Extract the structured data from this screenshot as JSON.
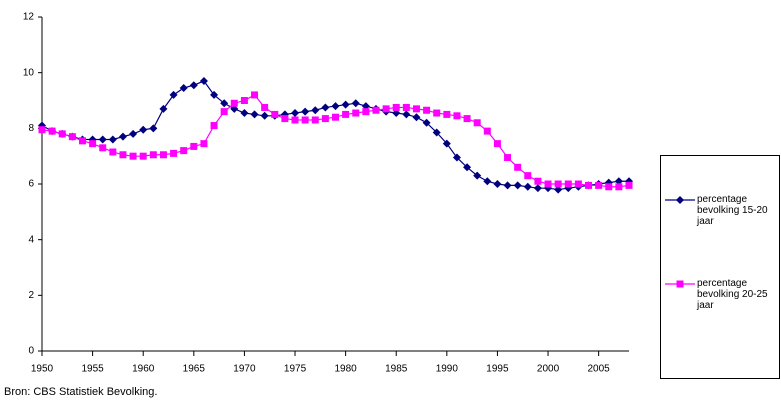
{
  "chart_data": {
    "type": "line",
    "source": "Bron: CBS Statistiek Bevolking.",
    "x": [
      1950,
      1951,
      1952,
      1953,
      1954,
      1955,
      1956,
      1957,
      1958,
      1959,
      1960,
      1961,
      1962,
      1963,
      1964,
      1965,
      1966,
      1967,
      1968,
      1969,
      1970,
      1971,
      1972,
      1973,
      1974,
      1975,
      1976,
      1977,
      1978,
      1979,
      1980,
      1981,
      1982,
      1983,
      1984,
      1985,
      1986,
      1987,
      1988,
      1989,
      1990,
      1991,
      1992,
      1993,
      1994,
      1995,
      1996,
      1997,
      1998,
      1999,
      2000,
      2001,
      2002,
      2003,
      2004,
      2005,
      2006,
      2007,
      2008
    ],
    "series": [
      {
        "name": "percentage bevolking 15-20 jaar",
        "color": "#000080",
        "marker": "diamond",
        "values": [
          8.1,
          7.9,
          7.8,
          7.7,
          7.6,
          7.6,
          7.6,
          7.6,
          7.7,
          7.8,
          7.95,
          8.0,
          8.7,
          9.2,
          9.45,
          9.55,
          9.7,
          9.2,
          8.9,
          8.7,
          8.55,
          8.5,
          8.45,
          8.45,
          8.5,
          8.55,
          8.6,
          8.65,
          8.75,
          8.8,
          8.85,
          8.9,
          8.8,
          8.7,
          8.6,
          8.55,
          8.5,
          8.4,
          8.2,
          7.85,
          7.45,
          6.95,
          6.6,
          6.3,
          6.1,
          6.0,
          5.95,
          5.95,
          5.9,
          5.85,
          5.85,
          5.8,
          5.85,
          5.9,
          5.95,
          6.0,
          6.05,
          6.1,
          6.1
        ]
      },
      {
        "name": "percentage bevolking 20-25 jaar",
        "color": "#ff00ff",
        "marker": "square",
        "values": [
          7.95,
          7.9,
          7.8,
          7.7,
          7.55,
          7.45,
          7.3,
          7.15,
          7.05,
          7.0,
          7.0,
          7.05,
          7.05,
          7.1,
          7.2,
          7.35,
          7.45,
          8.1,
          8.6,
          8.9,
          9.0,
          9.2,
          8.75,
          8.5,
          8.35,
          8.3,
          8.3,
          8.3,
          8.35,
          8.4,
          8.5,
          8.55,
          8.6,
          8.65,
          8.7,
          8.75,
          8.75,
          8.7,
          8.65,
          8.55,
          8.5,
          8.45,
          8.35,
          8.2,
          7.9,
          7.45,
          6.95,
          6.6,
          6.3,
          6.1,
          6.0,
          6.0,
          6.0,
          6.0,
          5.95,
          5.95,
          5.9,
          5.9,
          5.95
        ]
      }
    ],
    "xlim": [
      1950,
      2008
    ],
    "xticks": [
      1950,
      1955,
      1960,
      1965,
      1970,
      1975,
      1980,
      1985,
      1990,
      1995,
      2000,
      2005
    ],
    "ylim": [
      0,
      12
    ],
    "yticks": [
      0,
      2,
      4,
      6,
      8,
      10,
      12
    ],
    "grid": false,
    "legend": "right"
  }
}
